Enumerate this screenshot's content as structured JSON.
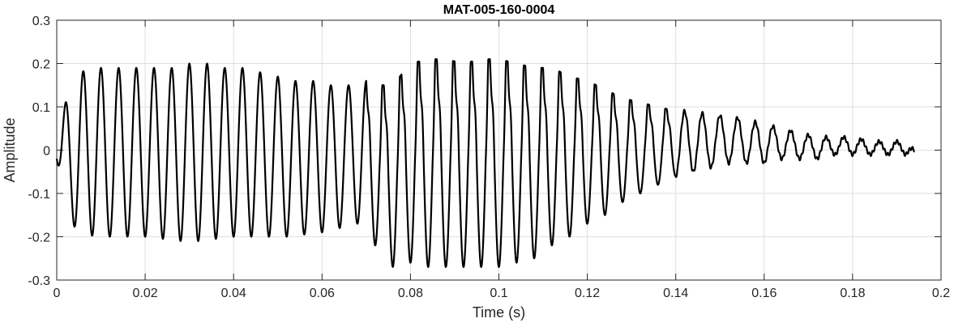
{
  "chart_data": {
    "type": "line",
    "title": "MAT-005-160-0004",
    "xlabel": "Time (s)",
    "ylabel": "Amplitude",
    "xlim": [
      0,
      0.2
    ],
    "ylim": [
      -0.3,
      0.3
    ],
    "xticks": [
      0,
      0.02,
      0.04,
      0.06,
      0.08,
      0.1,
      0.12,
      0.14,
      0.16,
      0.18,
      0.2
    ],
    "xtick_labels": [
      "0",
      "0.02",
      "0.04",
      "0.06",
      "0.08",
      "0.1",
      "0.12",
      "0.14",
      "0.16",
      "0.18",
      "0.2"
    ],
    "yticks": [
      0.3,
      0.2,
      0.1,
      0,
      -0.1,
      -0.2,
      -0.3
    ],
    "ytick_labels": [
      "0.3",
      "0.2",
      "0.1",
      "0",
      "-0.1",
      "-0.2",
      "-0.3"
    ],
    "grid": true,
    "line_color": "#000000",
    "series": [
      {
        "x": [
          0.0,
          0.002,
          0.005,
          0.009,
          0.013,
          0.017,
          0.022,
          0.026,
          0.03,
          0.034,
          0.038,
          0.042,
          0.046,
          0.05,
          0.054,
          0.058,
          0.062,
          0.066,
          0.07,
          0.072,
          0.076,
          0.08,
          0.084,
          0.088,
          0.092,
          0.096,
          0.1,
          0.104,
          0.108,
          0.112,
          0.116,
          0.12,
          0.124,
          0.128,
          0.132,
          0.136,
          0.14,
          0.144,
          0.148,
          0.152,
          0.156,
          0.16,
          0.164,
          0.168,
          0.172,
          0.176,
          0.18,
          0.184,
          0.188,
          0.192,
          0.194
        ],
        "y_upper": [
          0.05,
          0.11,
          0.18,
          0.19,
          0.19,
          0.19,
          0.19,
          0.19,
          0.2,
          0.2,
          0.19,
          0.19,
          0.18,
          0.17,
          0.16,
          0.16,
          0.15,
          0.15,
          0.16,
          0.15,
          0.15,
          0.2,
          0.21,
          0.21,
          0.2,
          0.21,
          0.21,
          0.2,
          0.19,
          0.19,
          0.17,
          0.16,
          0.14,
          0.12,
          0.11,
          0.1,
          0.09,
          0.09,
          0.08,
          0.08,
          0.07,
          0.06,
          0.05,
          0.04,
          0.03,
          0.03,
          0.03,
          0.02,
          0.02,
          0.02,
          0.0
        ],
        "y_lower": [
          -0.02,
          -0.15,
          -0.19,
          -0.2,
          -0.2,
          -0.2,
          -0.2,
          -0.21,
          -0.21,
          -0.21,
          -0.2,
          -0.2,
          -0.2,
          -0.2,
          -0.2,
          -0.19,
          -0.19,
          -0.17,
          -0.17,
          -0.22,
          -0.27,
          -0.26,
          -0.27,
          -0.27,
          -0.27,
          -0.27,
          -0.27,
          -0.26,
          -0.25,
          -0.22,
          -0.2,
          -0.17,
          -0.15,
          -0.12,
          -0.1,
          -0.08,
          -0.06,
          -0.05,
          -0.04,
          -0.03,
          -0.03,
          -0.03,
          -0.02,
          -0.02,
          -0.02,
          -0.01,
          -0.01,
          -0.01,
          -0.01,
          -0.01,
          0.0
        ]
      }
    ]
  }
}
